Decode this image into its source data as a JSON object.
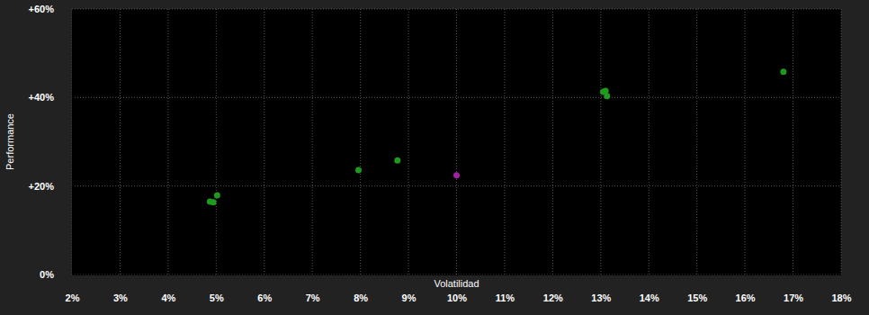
{
  "chart_data": {
    "type": "scatter",
    "x_label": "Volatilidad",
    "y_label": "Performance",
    "xlim": [
      2,
      18
    ],
    "xticks": [
      {
        "value": 2,
        "label": "2%"
      },
      {
        "value": 3,
        "label": "3%"
      },
      {
        "value": 4,
        "label": "4%"
      },
      {
        "value": 5,
        "label": "5%"
      },
      {
        "value": 6,
        "label": "6%"
      },
      {
        "value": 7,
        "label": "7%"
      },
      {
        "value": 8,
        "label": "8%"
      },
      {
        "value": 9,
        "label": "9%"
      },
      {
        "value": 10,
        "label": "10%"
      },
      {
        "value": 11,
        "label": "11%"
      },
      {
        "value": 12,
        "label": "12%"
      },
      {
        "value": 13,
        "label": "13%"
      },
      {
        "value": 14,
        "label": "14%"
      },
      {
        "value": 15,
        "label": "15%"
      },
      {
        "value": 16,
        "label": "16%"
      },
      {
        "value": 17,
        "label": "17%"
      },
      {
        "value": 18,
        "label": "18%"
      }
    ],
    "ylim": [
      0,
      60
    ],
    "yticks": [
      {
        "value": 0,
        "label": "0%"
      },
      {
        "value": 20,
        "label": "+20%"
      },
      {
        "value": 40,
        "label": "+40%"
      },
      {
        "value": 60,
        "label": "+60%"
      }
    ],
    "grid": true,
    "series": [
      {
        "color": "#1f9a1f",
        "marker": "circle",
        "x": [
          4.87,
          4.94,
          5.02,
          7.96,
          8.77,
          13.05,
          13.1,
          13.13,
          16.8
        ],
        "values": [
          16.5,
          16.3,
          17.9,
          23.6,
          25.8,
          41.3,
          41.5,
          40.3,
          45.8
        ]
      },
      {
        "color": "#a020a0",
        "marker": "circle",
        "x": [
          10.0
        ],
        "values": [
          22.4
        ]
      }
    ]
  }
}
